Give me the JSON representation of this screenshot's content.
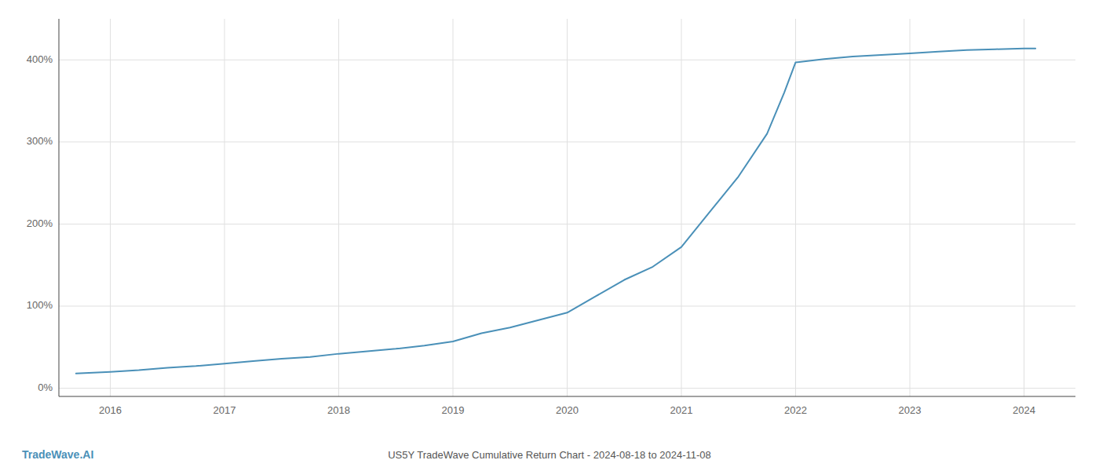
{
  "chart_data": {
    "type": "line",
    "title": "US5Y TradeWave Cumulative Return Chart - 2024-08-18 to 2024-11-08",
    "annotations": [
      "TradeWave.AI"
    ],
    "x": [
      2015.7,
      2016.0,
      2016.25,
      2016.5,
      2016.75,
      2017.0,
      2017.25,
      2017.5,
      2017.75,
      2018.0,
      2018.25,
      2018.5,
      2018.75,
      2019.0,
      2019.25,
      2019.5,
      2019.75,
      2020.0,
      2020.25,
      2020.5,
      2020.75,
      2021.0,
      2021.25,
      2021.5,
      2021.75,
      2021.9,
      2022.0,
      2022.25,
      2022.5,
      2022.75,
      2023.0,
      2023.25,
      2023.5,
      2023.75,
      2024.0,
      2024.1
    ],
    "values": [
      18,
      20,
      22,
      25,
      27,
      30,
      33,
      36,
      38,
      42,
      45,
      48,
      52,
      57,
      67,
      74,
      83,
      92,
      112,
      132,
      148,
      172,
      215,
      258,
      310,
      360,
      397,
      401,
      404,
      406,
      408,
      410,
      412,
      413,
      414,
      414
    ],
    "color": "#4a90b8",
    "xlim": [
      2015.55,
      2024.45
    ],
    "xticks": [
      2016,
      2017,
      2018,
      2019,
      2020,
      2021,
      2022,
      2023,
      2024
    ],
    "ylim": [
      -10,
      450
    ],
    "yticks": [
      {
        "value": 0,
        "label": "0%"
      },
      {
        "value": 100,
        "label": "100%"
      },
      {
        "value": 200,
        "label": "200%"
      },
      {
        "value": 300,
        "label": "300%"
      },
      {
        "value": 400,
        "label": "400%"
      }
    ],
    "grid": true
  }
}
